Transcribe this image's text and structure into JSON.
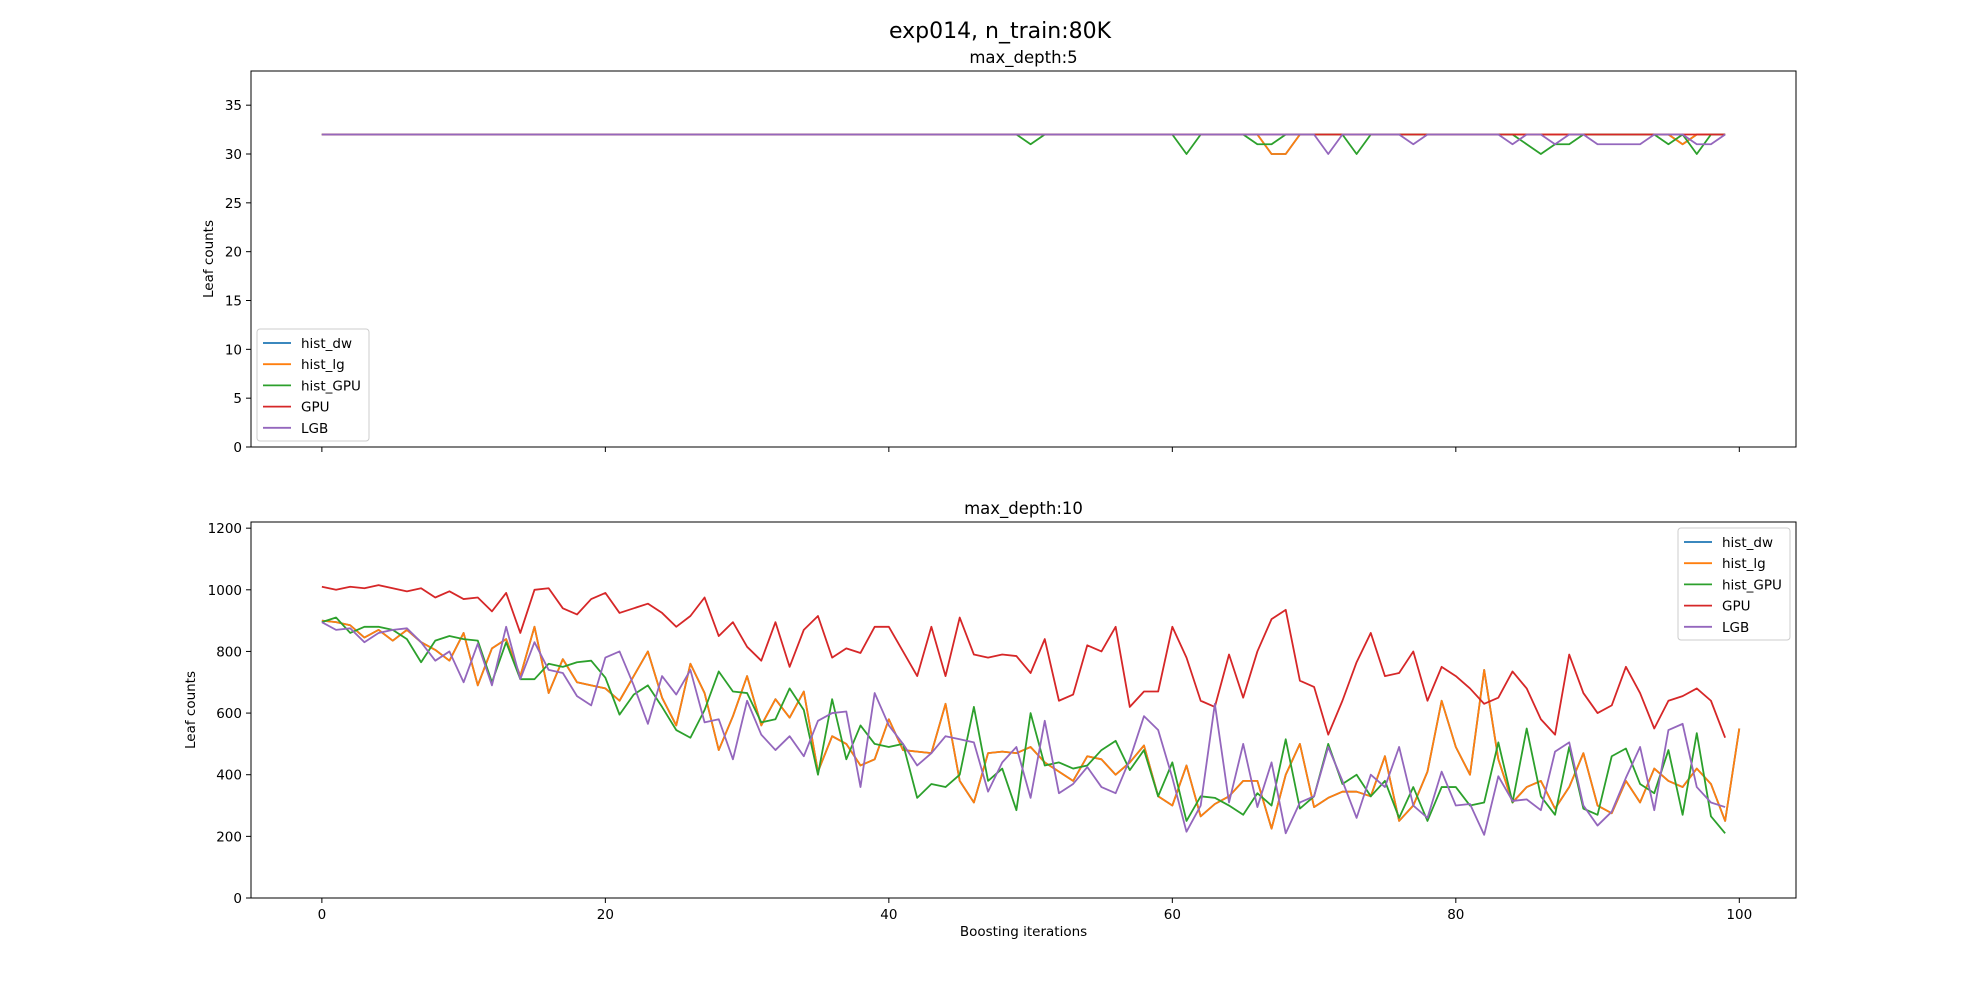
{
  "figure": {
    "suptitle": "exp014, n_train:80K"
  },
  "chart_data": [
    {
      "type": "line",
      "title": "max_depth:5",
      "xlabel": "",
      "ylabel": "Leaf counts",
      "xlim": [
        -5,
        104
      ],
      "ylim": [
        0,
        38.5
      ],
      "xticks": [
        0,
        20,
        40,
        60,
        80,
        100
      ],
      "yticks": [
        0,
        5,
        10,
        15,
        20,
        25,
        30,
        35
      ],
      "show_xticklabels": false,
      "grid": false,
      "legend_position": "lower-left",
      "series": [
        {
          "name": "hist_dw",
          "color": "#1f77b4",
          "values": [
            32,
            32,
            32,
            32,
            32,
            32,
            32,
            32,
            32,
            32,
            32,
            32,
            32,
            32,
            32,
            32,
            32,
            32,
            32,
            32,
            32,
            32,
            32,
            32,
            32,
            32,
            32,
            32,
            32,
            32,
            32,
            32,
            32,
            32,
            32,
            32,
            32,
            32,
            32,
            32,
            32,
            32,
            32,
            32,
            32,
            32,
            32,
            32,
            32,
            32,
            32,
            32,
            32,
            32,
            32,
            32,
            32,
            32,
            32,
            32,
            32,
            32,
            32,
            32,
            32,
            32,
            32,
            30,
            30,
            32,
            32,
            32,
            32,
            32,
            32,
            32,
            32,
            32,
            32,
            32,
            32,
            32,
            32,
            32,
            32,
            32,
            32,
            32,
            32,
            32,
            32,
            32,
            32,
            32,
            32,
            32,
            31,
            32,
            32,
            32
          ]
        },
        {
          "name": "hist_lg",
          "color": "#ff7f0e",
          "values": [
            32,
            32,
            32,
            32,
            32,
            32,
            32,
            32,
            32,
            32,
            32,
            32,
            32,
            32,
            32,
            32,
            32,
            32,
            32,
            32,
            32,
            32,
            32,
            32,
            32,
            32,
            32,
            32,
            32,
            32,
            32,
            32,
            32,
            32,
            32,
            32,
            32,
            32,
            32,
            32,
            32,
            32,
            32,
            32,
            32,
            32,
            32,
            32,
            32,
            32,
            32,
            32,
            32,
            32,
            32,
            32,
            32,
            32,
            32,
            32,
            32,
            32,
            32,
            32,
            32,
            32,
            32,
            30,
            30,
            32,
            32,
            32,
            32,
            32,
            32,
            32,
            32,
            32,
            32,
            32,
            32,
            32,
            32,
            32,
            32,
            32,
            32,
            32,
            32,
            32,
            32,
            32,
            32,
            32,
            32,
            32,
            31,
            32,
            32,
            32
          ]
        },
        {
          "name": "hist_GPU",
          "color": "#2ca02c",
          "values": [
            32,
            32,
            32,
            32,
            32,
            32,
            32,
            32,
            32,
            32,
            32,
            32,
            32,
            32,
            32,
            32,
            32,
            32,
            32,
            32,
            32,
            32,
            32,
            32,
            32,
            32,
            32,
            32,
            32,
            32,
            32,
            32,
            32,
            32,
            32,
            32,
            32,
            32,
            32,
            32,
            32,
            32,
            32,
            32,
            32,
            32,
            32,
            32,
            32,
            32,
            31,
            32,
            32,
            32,
            32,
            32,
            32,
            32,
            32,
            32,
            32,
            30,
            32,
            32,
            32,
            32,
            31,
            31,
            32,
            32,
            32,
            32,
            32,
            30,
            32,
            32,
            32,
            32,
            32,
            32,
            32,
            32,
            32,
            32,
            32,
            31,
            30,
            31,
            31,
            32,
            32,
            32,
            32,
            32,
            32,
            31,
            32,
            30,
            32,
            32
          ]
        },
        {
          "name": "GPU",
          "color": "#d62728",
          "values": [
            32,
            32,
            32,
            32,
            32,
            32,
            32,
            32,
            32,
            32,
            32,
            32,
            32,
            32,
            32,
            32,
            32,
            32,
            32,
            32,
            32,
            32,
            32,
            32,
            32,
            32,
            32,
            32,
            32,
            32,
            32,
            32,
            32,
            32,
            32,
            32,
            32,
            32,
            32,
            32,
            32,
            32,
            32,
            32,
            32,
            32,
            32,
            32,
            32,
            32,
            32,
            32,
            32,
            32,
            32,
            32,
            32,
            32,
            32,
            32,
            32,
            32,
            32,
            32,
            32,
            32,
            32,
            32,
            32,
            32,
            32,
            32,
            32,
            32,
            32,
            32,
            32,
            32,
            32,
            32,
            32,
            32,
            32,
            32,
            32,
            32,
            32,
            32,
            32,
            32,
            32,
            32,
            32,
            32,
            32,
            32,
            32,
            32,
            32,
            32
          ]
        },
        {
          "name": "LGB",
          "color": "#9467bd",
          "values": [
            32,
            32,
            32,
            32,
            32,
            32,
            32,
            32,
            32,
            32,
            32,
            32,
            32,
            32,
            32,
            32,
            32,
            32,
            32,
            32,
            32,
            32,
            32,
            32,
            32,
            32,
            32,
            32,
            32,
            32,
            32,
            32,
            32,
            32,
            32,
            32,
            32,
            32,
            32,
            32,
            32,
            32,
            32,
            32,
            32,
            32,
            32,
            32,
            32,
            32,
            32,
            32,
            32,
            32,
            32,
            32,
            32,
            32,
            32,
            32,
            32,
            32,
            32,
            32,
            32,
            32,
            32,
            32,
            32,
            32,
            32,
            30,
            32,
            32,
            32,
            32,
            32,
            31,
            32,
            32,
            32,
            32,
            32,
            32,
            31,
            32,
            32,
            31,
            32,
            32,
            31,
            31,
            31,
            31,
            32,
            32,
            32,
            31,
            31,
            32
          ]
        }
      ]
    },
    {
      "type": "line",
      "title": "max_depth:10",
      "xlabel": "Boosting iterations",
      "ylabel": "Leaf counts",
      "xlim": [
        -5,
        104
      ],
      "ylim": [
        0,
        1220
      ],
      "xticks": [
        0,
        20,
        40,
        60,
        80,
        100
      ],
      "yticks": [
        0,
        200,
        400,
        600,
        800,
        1000,
        1200
      ],
      "show_xticklabels": true,
      "grid": false,
      "legend_position": "upper-right",
      "series": [
        {
          "name": "hist_dw",
          "color": "#1f77b4",
          "values": [
            900,
            895,
            885,
            845,
            870,
            835,
            870,
            830,
            805,
            770,
            860,
            690,
            810,
            840,
            720,
            880,
            665,
            775,
            700,
            690,
            680,
            640,
            720,
            800,
            650,
            560,
            760,
            665,
            480,
            590,
            720,
            560,
            645,
            585,
            670,
            410,
            525,
            500,
            430,
            450,
            580,
            480,
            475,
            470,
            630,
            380,
            310,
            470,
            475,
            470,
            490,
            440,
            410,
            380,
            460,
            450,
            400,
            440,
            495,
            330,
            300,
            430,
            265,
            305,
            330,
            380,
            380,
            225,
            400,
            500,
            295,
            325,
            345,
            345,
            330,
            460,
            250,
            300,
            410,
            640,
            490,
            400,
            740,
            450,
            310,
            360,
            380,
            290,
            360,
            470,
            300,
            275,
            380,
            310,
            420,
            380,
            360,
            420,
            370,
            250,
            550
          ]
        },
        {
          "name": "hist_lg",
          "color": "#ff7f0e",
          "values": [
            900,
            895,
            885,
            845,
            870,
            835,
            870,
            830,
            805,
            770,
            860,
            690,
            810,
            840,
            720,
            880,
            665,
            775,
            700,
            690,
            680,
            640,
            720,
            800,
            650,
            560,
            760,
            665,
            480,
            590,
            720,
            560,
            645,
            585,
            670,
            410,
            525,
            500,
            430,
            450,
            580,
            480,
            475,
            470,
            630,
            380,
            310,
            470,
            475,
            470,
            490,
            440,
            410,
            380,
            460,
            450,
            400,
            440,
            495,
            330,
            300,
            430,
            265,
            305,
            330,
            380,
            380,
            225,
            400,
            500,
            295,
            325,
            345,
            345,
            330,
            460,
            250,
            300,
            410,
            640,
            490,
            400,
            740,
            450,
            310,
            360,
            380,
            290,
            360,
            470,
            300,
            275,
            380,
            310,
            420,
            380,
            360,
            420,
            370,
            250,
            550
          ]
        },
        {
          "name": "hist_GPU",
          "color": "#2ca02c",
          "values": [
            895,
            910,
            860,
            880,
            880,
            870,
            840,
            765,
            835,
            850,
            840,
            835,
            700,
            830,
            710,
            710,
            760,
            750,
            765,
            770,
            715,
            595,
            660,
            690,
            620,
            545,
            520,
            610,
            735,
            670,
            665,
            570,
            580,
            680,
            610,
            400,
            645,
            450,
            560,
            500,
            490,
            500,
            325,
            370,
            360,
            400,
            620,
            380,
            420,
            285,
            600,
            430,
            440,
            420,
            430,
            480,
            510,
            415,
            480,
            330,
            440,
            250,
            330,
            325,
            300,
            270,
            340,
            300,
            515,
            290,
            330,
            500,
            370,
            400,
            330,
            380,
            260,
            360,
            250,
            360,
            360,
            300,
            310,
            505,
            310,
            550,
            330,
            270,
            490,
            290,
            270,
            460,
            485,
            370,
            340,
            480,
            270,
            535,
            265,
            210
          ]
        },
        {
          "name": "GPU",
          "color": "#d62728",
          "values": [
            1010,
            1000,
            1010,
            1005,
            1015,
            1005,
            995,
            1005,
            975,
            995,
            970,
            975,
            930,
            990,
            860,
            1000,
            1005,
            940,
            920,
            970,
            990,
            925,
            940,
            955,
            925,
            880,
            915,
            975,
            850,
            895,
            815,
            770,
            895,
            750,
            870,
            915,
            780,
            810,
            795,
            880,
            880,
            800,
            720,
            880,
            720,
            910,
            790,
            780,
            790,
            785,
            730,
            840,
            640,
            660,
            820,
            800,
            880,
            620,
            670,
            670,
            880,
            780,
            640,
            620,
            790,
            650,
            800,
            905,
            935,
            705,
            685,
            530,
            640,
            765,
            860,
            720,
            730,
            800,
            640,
            750,
            720,
            680,
            630,
            650,
            735,
            680,
            580,
            530,
            790,
            665,
            600,
            625,
            750,
            665,
            550,
            640,
            655,
            680,
            640,
            520
          ]
        },
        {
          "name": "LGB",
          "color": "#9467bd",
          "values": [
            895,
            870,
            875,
            830,
            860,
            870,
            875,
            830,
            770,
            800,
            700,
            825,
            690,
            880,
            710,
            830,
            740,
            730,
            655,
            625,
            780,
            800,
            690,
            565,
            720,
            660,
            740,
            570,
            580,
            450,
            640,
            530,
            480,
            525,
            460,
            575,
            600,
            605,
            360,
            665,
            560,
            500,
            430,
            470,
            525,
            515,
            505,
            345,
            440,
            490,
            325,
            575,
            340,
            370,
            425,
            360,
            340,
            450,
            590,
            545,
            390,
            215,
            300,
            630,
            310,
            500,
            295,
            440,
            210,
            310,
            330,
            490,
            380,
            260,
            400,
            360,
            490,
            300,
            260,
            410,
            300,
            305,
            205,
            395,
            315,
            320,
            285,
            475,
            505,
            300,
            235,
            280,
            390,
            490,
            285,
            545,
            565,
            360,
            310,
            295
          ]
        }
      ]
    }
  ]
}
